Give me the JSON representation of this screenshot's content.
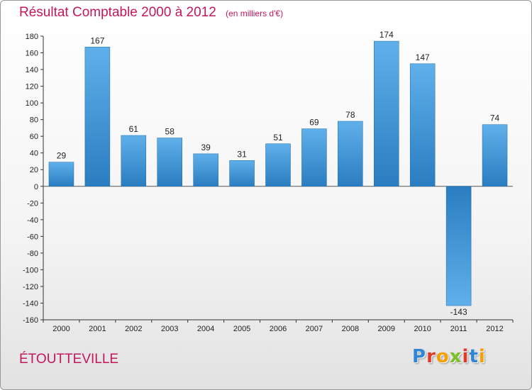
{
  "chart_data": {
    "type": "bar",
    "title": "Résultat Comptable 2000 à 2012",
    "subtitle": "(en milliers d'€)",
    "categories": [
      "2000",
      "2001",
      "2002",
      "2003",
      "2004",
      "2005",
      "2006",
      "2007",
      "2008",
      "2009",
      "2010",
      "2011",
      "2012"
    ],
    "values": [
      29,
      167,
      61,
      58,
      39,
      31,
      51,
      69,
      78,
      174,
      147,
      -143,
      74
    ],
    "ylim": [
      -160,
      180
    ],
    "yticks": [
      180,
      160,
      140,
      120,
      100,
      80,
      60,
      40,
      20,
      0,
      -20,
      -40,
      -60,
      -80,
      -100,
      -120,
      -140,
      -160
    ],
    "grid": false,
    "colors": {
      "bar_dark": "#2a7dc0",
      "bar_light": "#5fb0ea"
    }
  },
  "footer": {
    "commune": "ÉTOUTTEVILLE",
    "logo_letters": [
      {
        "ch": "P",
        "color": "#2e86d4"
      },
      {
        "ch": "r",
        "color": "#e23a2a"
      },
      {
        "ch": "o",
        "color": "#f5a000"
      },
      {
        "ch": "x",
        "color": "#7cbf2a"
      },
      {
        "ch": "i",
        "color": "#e23a2a"
      },
      {
        "ch": "t",
        "color": "#2e86d4"
      },
      {
        "ch": "i",
        "color": "#f5a000"
      }
    ]
  }
}
